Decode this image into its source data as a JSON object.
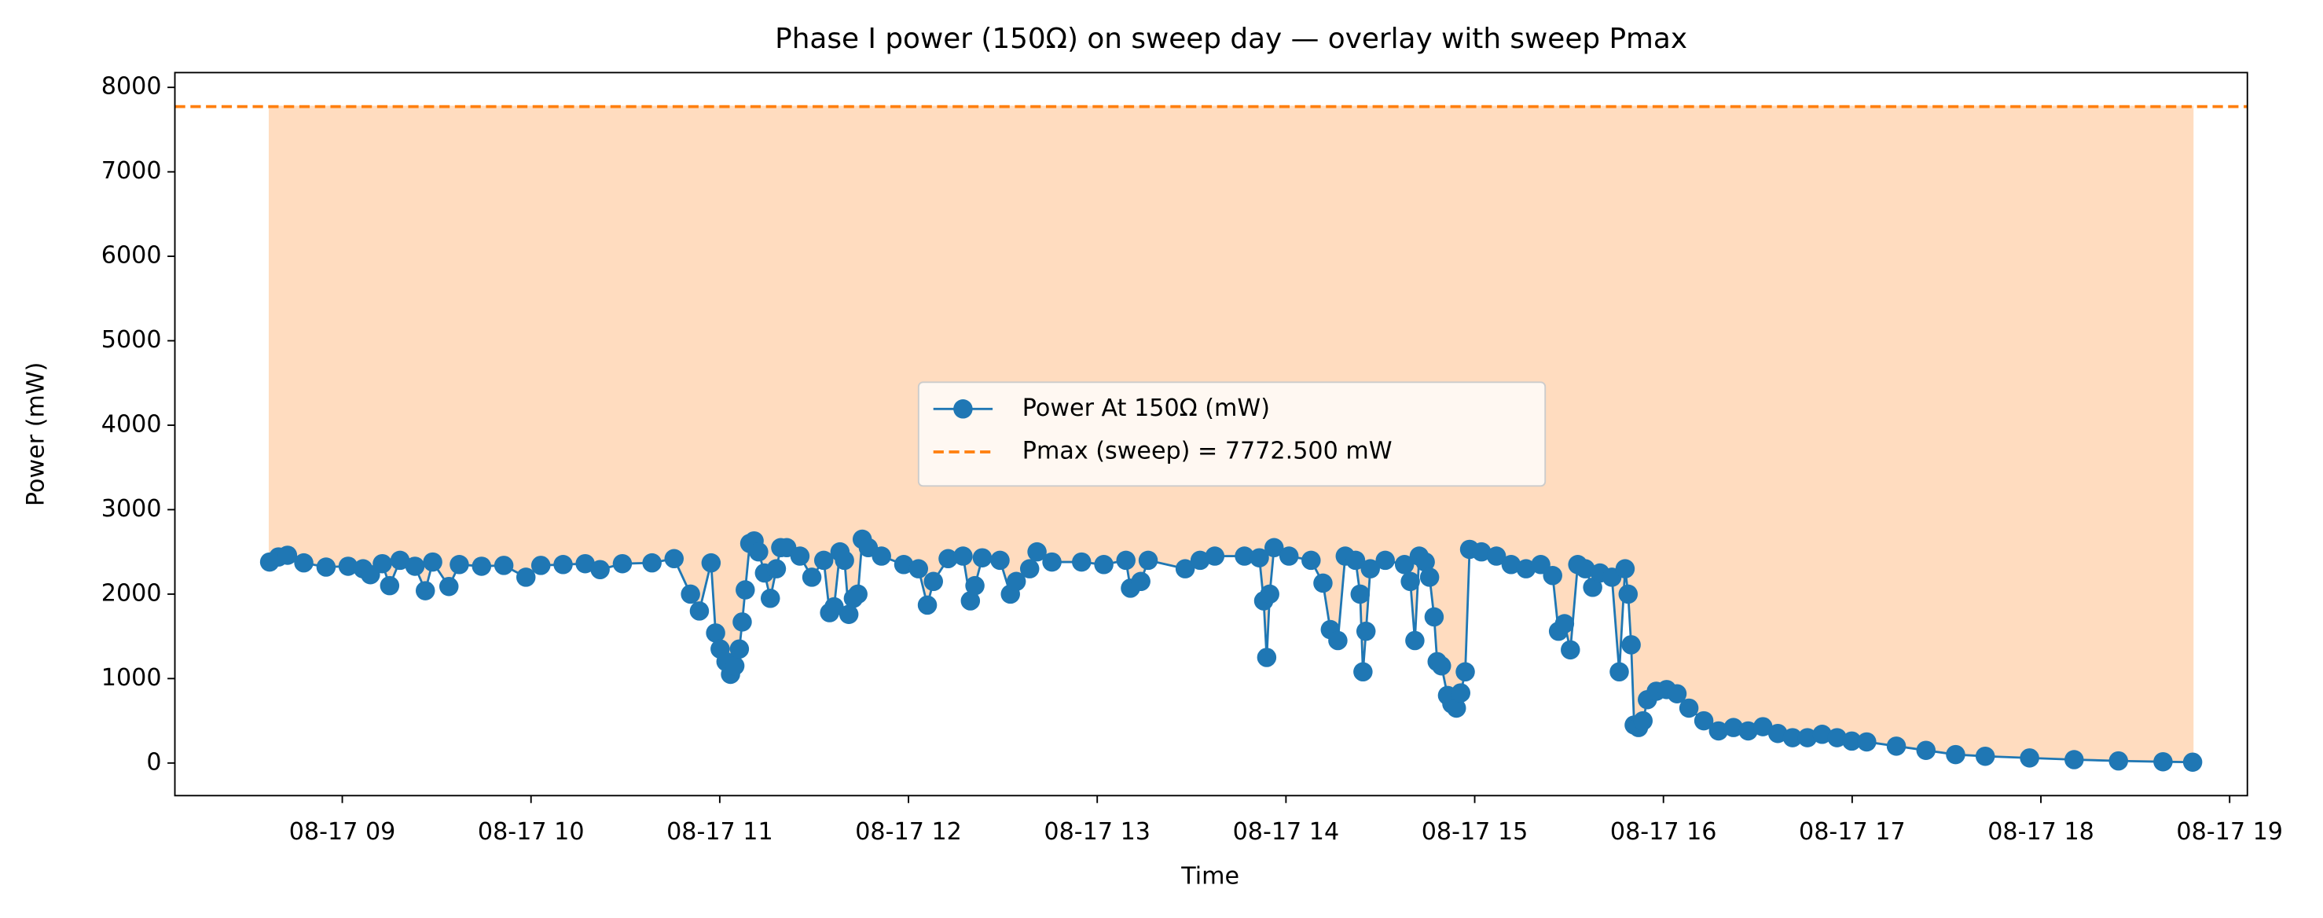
{
  "chart_data": {
    "type": "line",
    "title": "Phase I power (150Ω) on sweep day — overlay with sweep Pmax",
    "x_label": "Time",
    "y_label": "Power (mW)",
    "x": [
      8.615,
      8.662,
      8.71,
      8.796,
      8.914,
      9.031,
      9.11,
      9.149,
      9.212,
      9.251,
      9.306,
      9.385,
      9.44,
      9.479,
      9.565,
      9.62,
      9.738,
      9.856,
      9.973,
      10.052,
      10.17,
      10.287,
      10.366,
      10.484,
      10.641,
      10.758,
      10.845,
      10.892,
      10.954,
      10.978,
      11.002,
      11.033,
      11.057,
      11.08,
      11.104,
      11.119,
      11.135,
      11.159,
      11.182,
      11.206,
      11.237,
      11.268,
      11.3,
      11.323,
      11.355,
      11.425,
      11.488,
      11.551,
      11.582,
      11.606,
      11.637,
      11.661,
      11.684,
      11.708,
      11.732,
      11.755,
      11.787,
      11.857,
      11.975,
      12.053,
      12.1,
      12.132,
      12.21,
      12.289,
      12.328,
      12.352,
      12.391,
      12.485,
      12.54,
      12.571,
      12.642,
      12.681,
      12.76,
      12.917,
      13.035,
      13.152,
      13.176,
      13.231,
      13.27,
      13.466,
      13.545,
      13.623,
      13.78,
      13.859,
      13.882,
      13.898,
      13.914,
      13.937,
      14.016,
      14.133,
      14.196,
      14.235,
      14.275,
      14.314,
      14.369,
      14.393,
      14.408,
      14.424,
      14.447,
      14.526,
      14.628,
      14.659,
      14.683,
      14.706,
      14.738,
      14.761,
      14.785,
      14.801,
      14.824,
      14.856,
      14.879,
      14.903,
      14.926,
      14.95,
      14.973,
      15.036,
      15.115,
      15.193,
      15.272,
      15.35,
      15.413,
      15.444,
      15.476,
      15.507,
      15.546,
      15.586,
      15.625,
      15.664,
      15.727,
      15.766,
      15.797,
      15.813,
      15.829,
      15.845,
      15.868,
      15.892,
      15.915,
      15.962,
      16.017,
      16.072,
      16.135,
      16.214,
      16.292,
      16.371,
      16.449,
      16.527,
      16.606,
      16.684,
      16.763,
      16.841,
      16.92,
      16.998,
      17.077,
      17.234,
      17.391,
      17.548,
      17.705,
      17.94,
      18.176,
      18.411,
      18.647,
      18.804
    ],
    "series": [
      {
        "name": "Power At 150Ω (mW)",
        "color": "#1f77b4",
        "values": [
          2380,
          2440,
          2460,
          2370,
          2320,
          2330,
          2300,
          2230,
          2360,
          2100,
          2400,
          2330,
          2040,
          2380,
          2090,
          2350,
          2330,
          2340,
          2200,
          2340,
          2350,
          2360,
          2290,
          2360,
          2370,
          2420,
          2000,
          1800,
          2370,
          1540,
          1350,
          1200,
          1050,
          1150,
          1350,
          1670,
          2050,
          2600,
          2630,
          2500,
          2250,
          1950,
          2300,
          2550,
          2550,
          2450,
          2200,
          2400,
          1780,
          1850,
          2500,
          2400,
          1760,
          1950,
          2000,
          2650,
          2550,
          2450,
          2350,
          2300,
          1870,
          2150,
          2420,
          2450,
          1920,
          2100,
          2430,
          2400,
          2000,
          2150,
          2300,
          2500,
          2380,
          2380,
          2350,
          2400,
          2070,
          2150,
          2400,
          2300,
          2400,
          2450,
          2450,
          2430,
          1920,
          1250,
          2000,
          2550,
          2450,
          2400,
          2130,
          1580,
          1450,
          2450,
          2400,
          2000,
          1080,
          1560,
          2300,
          2400,
          2350,
          2150,
          1450,
          2450,
          2380,
          2200,
          1730,
          1200,
          1150,
          800,
          700,
          650,
          830,
          1080,
          2530,
          2500,
          2450,
          2350,
          2300,
          2350,
          2220,
          1560,
          1650,
          1340,
          2350,
          2300,
          2080,
          2250,
          2200,
          1080,
          2300,
          2000,
          1400,
          450,
          420,
          500,
          750,
          850,
          870,
          820,
          650,
          500,
          380,
          420,
          380,
          430,
          350,
          300,
          300,
          340,
          300,
          260,
          250,
          200,
          150,
          100,
          80,
          60,
          40,
          25,
          15,
          10
        ]
      }
    ],
    "hline": {
      "name": "Pmax (sweep) = 7772.500 mW",
      "value": 7772.5,
      "color": "#ff7f0e"
    },
    "fill_color": "#ffdcbf",
    "xlim": [
      8.113,
      19.094
    ],
    "xticks": [
      {
        "value": 9,
        "label": "08-17 09"
      },
      {
        "value": 10,
        "label": "08-17 10"
      },
      {
        "value": 11,
        "label": "08-17 11"
      },
      {
        "value": 12,
        "label": "08-17 12"
      },
      {
        "value": 13,
        "label": "08-17 13"
      },
      {
        "value": 14,
        "label": "08-17 14"
      },
      {
        "value": 15,
        "label": "08-17 15"
      },
      {
        "value": 16,
        "label": "08-17 16"
      },
      {
        "value": 17,
        "label": "08-17 17"
      },
      {
        "value": 18,
        "label": "08-17 18"
      },
      {
        "value": 19,
        "label": "08-17 19"
      }
    ],
    "ylim": [
      -386,
      8175
    ],
    "yticks": [
      0,
      1000,
      2000,
      3000,
      4000,
      5000,
      6000,
      7000,
      8000
    ],
    "grid": false,
    "legend": "center"
  }
}
